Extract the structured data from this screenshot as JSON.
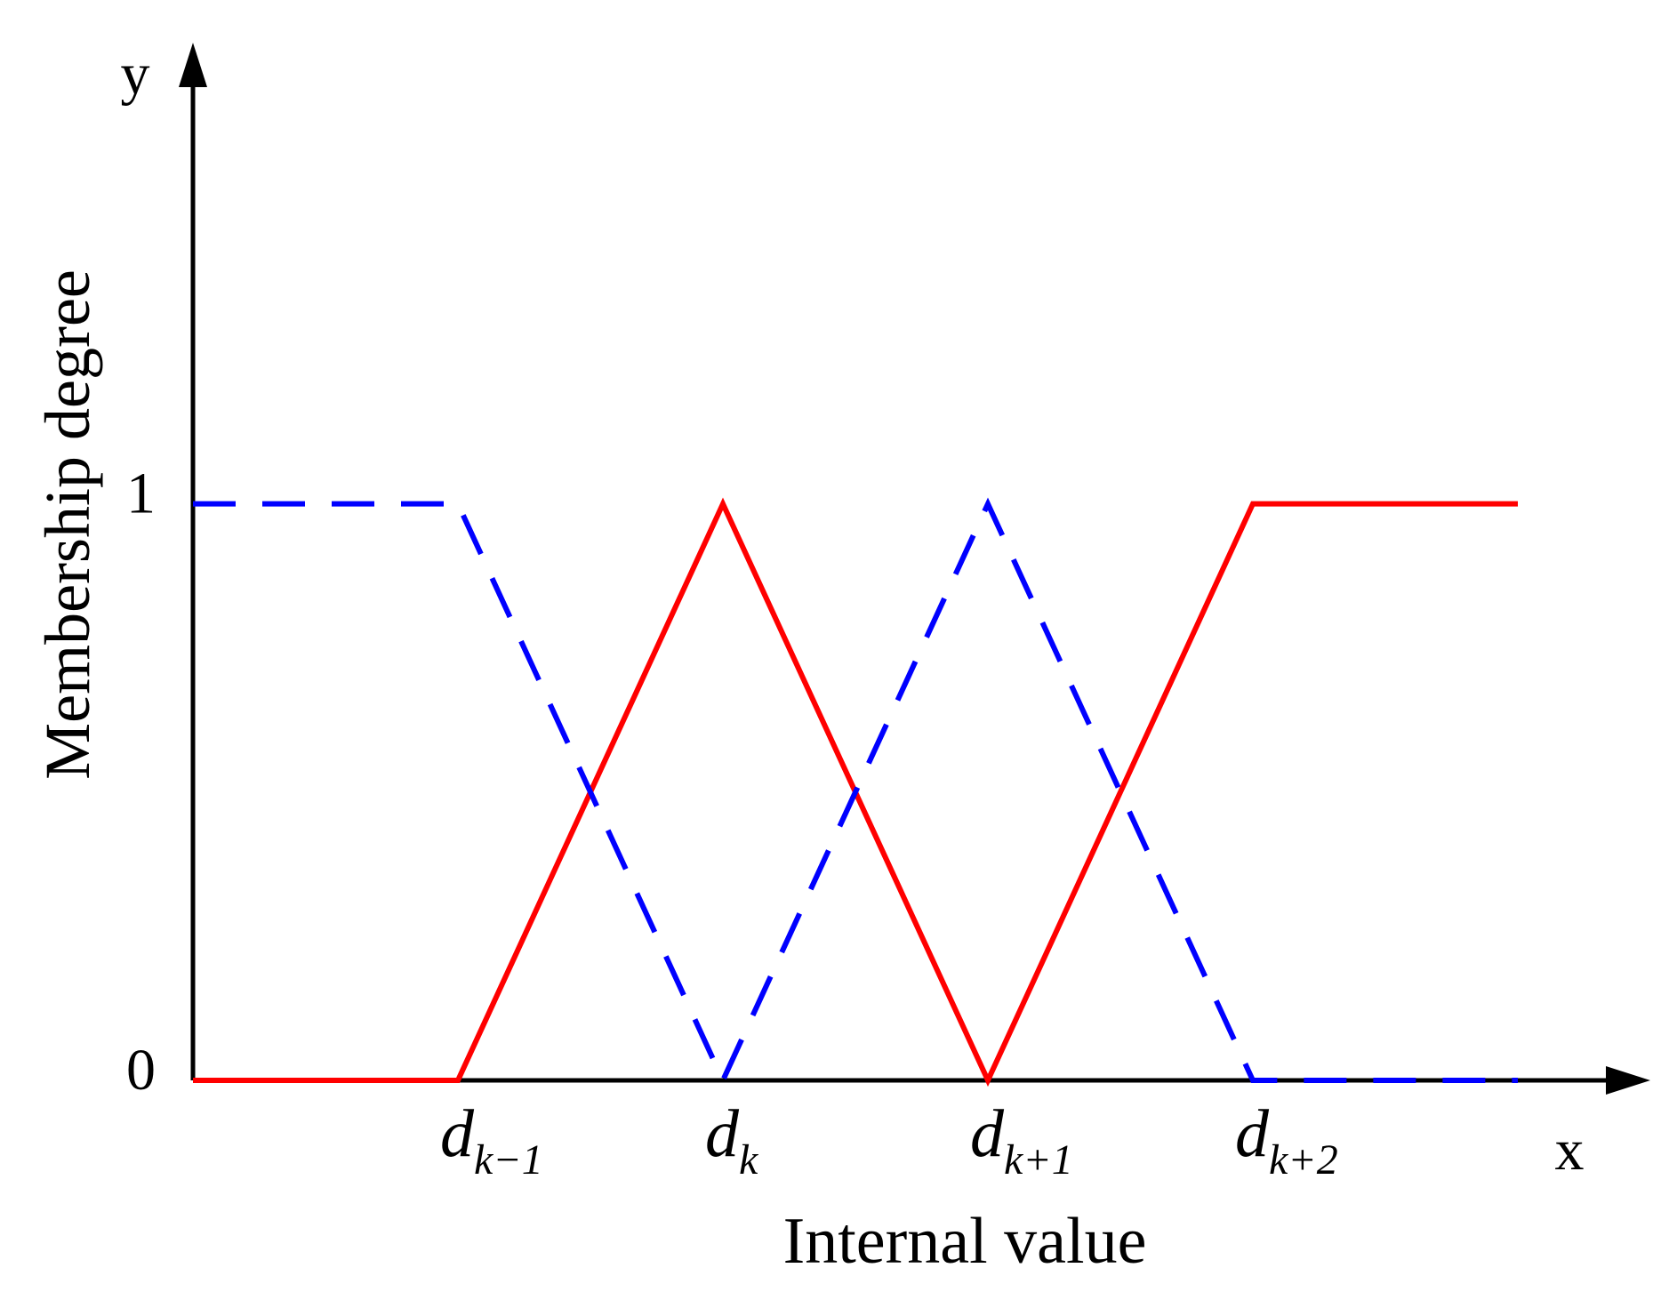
{
  "chart_data": {
    "type": "line",
    "x_label": "Internal value",
    "y_label": "Membership degree",
    "x_axis_name": "x",
    "y_axis_name": "y",
    "x": [
      0,
      1,
      2,
      3,
      4,
      5
    ],
    "series": [
      {
        "color": "#ff0000",
        "dashed": false,
        "values": [
          0,
          0,
          1,
          0,
          1,
          1
        ]
      },
      {
        "color": "#0000ff",
        "dashed": true,
        "values": [
          1,
          1,
          0,
          1,
          0,
          0
        ]
      }
    ],
    "xlim": [
      0,
      5.5
    ],
    "ylim": [
      0,
      1.8
    ],
    "xticks": [
      {
        "value": 1,
        "label": "dk−1"
      },
      {
        "value": 2,
        "label": "dk"
      },
      {
        "value": 3,
        "label": "dk+1"
      },
      {
        "value": 4,
        "label": "dk+2"
      }
    ],
    "yticks": [
      0,
      1
    ],
    "grid": false
  }
}
